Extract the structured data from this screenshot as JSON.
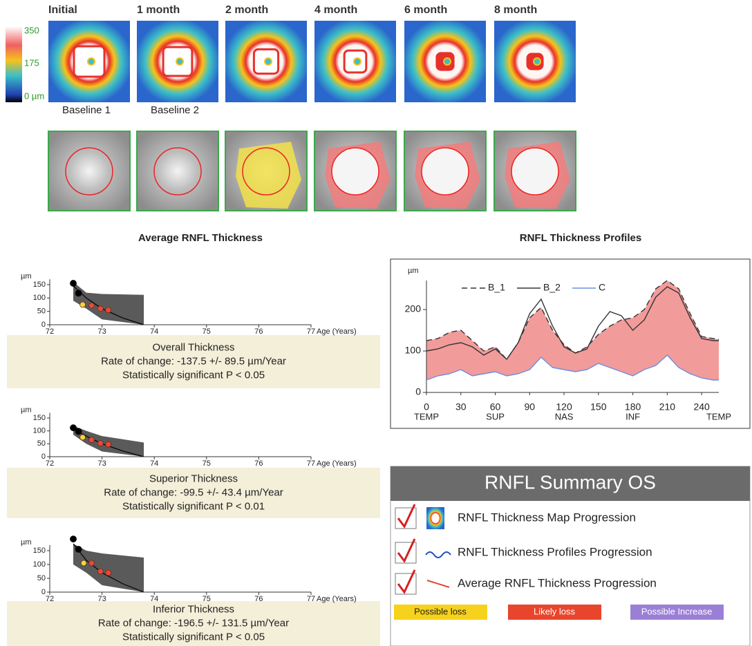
{
  "color_scale": {
    "labels": [
      "350",
      "175",
      "0 µm"
    ]
  },
  "maps": {
    "labels": [
      "Initial",
      "1 month",
      "2 month",
      "4 month",
      "6 month",
      "8 month"
    ]
  },
  "fundus": {
    "labels": [
      "Baseline 1",
      "Baseline 2"
    ]
  },
  "sections": [
    "Average RNFL Thickness",
    "RNFL Thickness Profiles"
  ],
  "chart_data": [
    {
      "type": "scatter",
      "title": "Overall Thickness",
      "subtitle": "Rate of change: -137.5 +/- 89.5 µm/Year",
      "annotation": "Statistically significant P < 0.05",
      "ylabel": "µm",
      "xlabel": "Age (Years)",
      "xlim": [
        72,
        77
      ],
      "ylim": [
        0,
        170
      ],
      "xticks": [
        72,
        73,
        74,
        75,
        76,
        77
      ],
      "yticks": [
        0,
        50,
        100,
        150
      ],
      "band": {
        "color": "#5a5a5a",
        "x": [
          72.45,
          72.7,
          73.0,
          73.8
        ],
        "upper": [
          160,
          120,
          115,
          112
        ],
        "lower": [
          90,
          60,
          20,
          0
        ]
      },
      "trend": {
        "color": "#000000",
        "x": [
          72.45,
          72.7,
          73.0,
          73.4,
          73.8
        ],
        "values": [
          145,
          100,
          60,
          25,
          0
        ]
      },
      "series": [
        {
          "color": "#000000",
          "x": [
            72.45,
            72.55
          ],
          "values": [
            155,
            118
          ]
        },
        {
          "color": "#f5d73a",
          "x": [
            72.63
          ],
          "values": [
            75
          ]
        },
        {
          "color": "#e8493a",
          "x": [
            72.8,
            72.97,
            73.12
          ],
          "values": [
            72,
            60,
            55
          ]
        }
      ]
    },
    {
      "type": "scatter",
      "title": "Superior Thickness",
      "subtitle": "Rate of change: -99.5 +/- 43.4 µm/Year",
      "annotation": "Statistically significant P < 0.01",
      "ylabel": "µm",
      "xlabel": "Age (Years)",
      "xlim": [
        72,
        77
      ],
      "ylim": [
        0,
        170
      ],
      "xticks": [
        72,
        73,
        74,
        75,
        76,
        77
      ],
      "yticks": [
        0,
        50,
        100,
        150
      ],
      "band": {
        "color": "#5a5a5a",
        "x": [
          72.45,
          72.7,
          73.0,
          73.8
        ],
        "upper": [
          120,
          100,
          80,
          55
        ],
        "lower": [
          85,
          50,
          20,
          0
        ]
      },
      "trend": {
        "color": "#000000",
        "x": [
          72.45,
          72.7,
          73.0,
          73.4,
          73.8
        ],
        "values": [
          108,
          80,
          50,
          22,
          0
        ]
      },
      "series": [
        {
          "color": "#000000",
          "x": [
            72.45,
            72.55
          ],
          "values": [
            112,
            98
          ]
        },
        {
          "color": "#f5d73a",
          "x": [
            72.63
          ],
          "values": [
            75
          ]
        },
        {
          "color": "#e8493a",
          "x": [
            72.8,
            72.97,
            73.12
          ],
          "values": [
            65,
            52,
            48
          ]
        }
      ]
    },
    {
      "type": "scatter",
      "title": "Inferior Thickness",
      "subtitle": "Rate of change: -196.5 +/- 131.5 µm/Year",
      "annotation": "Statistically significant P < 0.05",
      "ylabel": "µm",
      "xlabel": "Age (Years)",
      "xlim": [
        72,
        77
      ],
      "ylim": [
        0,
        170
      ],
      "xticks": [
        72,
        73,
        74,
        75,
        76,
        77
      ],
      "yticks": [
        0,
        50,
        100,
        150
      ],
      "band": {
        "color": "#5a5a5a",
        "x": [
          72.45,
          72.7,
          73.0,
          73.8
        ],
        "upper": [
          175,
          150,
          140,
          125
        ],
        "lower": [
          100,
          70,
          25,
          0
        ]
      },
      "trend": {
        "color": "#000000",
        "x": [
          72.45,
          72.7,
          73.0,
          73.4,
          73.8
        ],
        "values": [
          175,
          115,
          70,
          30,
          0
        ]
      },
      "series": [
        {
          "color": "#000000",
          "x": [
            72.45,
            72.55
          ],
          "values": [
            192,
            155
          ]
        },
        {
          "color": "#f5d73a",
          "x": [
            72.65
          ],
          "values": [
            105
          ]
        },
        {
          "color": "#e8493a",
          "x": [
            72.8,
            72.97,
            73.12
          ],
          "values": [
            105,
            75,
            70
          ]
        }
      ]
    },
    {
      "type": "line",
      "ylabel": "µm",
      "xlim": [
        0,
        260
      ],
      "ylim": [
        0,
        270
      ],
      "xticks": [
        0,
        30,
        60,
        90,
        120,
        150,
        180,
        210,
        240
      ],
      "yticks": [
        0,
        100,
        200
      ],
      "xsublabels": [
        {
          "value": 0,
          "label": "TEMP"
        },
        {
          "value": 60,
          "label": "SUP"
        },
        {
          "value": 120,
          "label": "NAS"
        },
        {
          "value": 180,
          "label": "INF"
        },
        {
          "value": 255,
          "label": "TEMP"
        }
      ],
      "fill_color": "#f08a8a",
      "x": [
        0,
        10,
        20,
        30,
        40,
        50,
        60,
        70,
        80,
        90,
        100,
        110,
        120,
        130,
        140,
        150,
        160,
        170,
        180,
        190,
        200,
        210,
        220,
        230,
        240,
        250,
        255
      ],
      "series": [
        {
          "name": "B_1",
          "color": "#333333",
          "style": "dashed",
          "values": [
            125,
            130,
            145,
            150,
            125,
            100,
            110,
            80,
            120,
            180,
            205,
            150,
            115,
            95,
            110,
            140,
            160,
            175,
            180,
            200,
            250,
            270,
            250,
            190,
            135,
            130,
            128
          ]
        },
        {
          "name": "B_2",
          "color": "#333333",
          "style": "solid",
          "values": [
            100,
            105,
            115,
            120,
            110,
            90,
            105,
            80,
            120,
            190,
            225,
            160,
            110,
            95,
            105,
            160,
            195,
            185,
            150,
            175,
            230,
            255,
            240,
            180,
            130,
            125,
            125
          ]
        },
        {
          "name": "C",
          "color": "#6a8fe0",
          "style": "solid",
          "values": [
            30,
            40,
            45,
            55,
            40,
            45,
            50,
            40,
            45,
            55,
            85,
            60,
            55,
            50,
            55,
            70,
            60,
            50,
            40,
            55,
            65,
            90,
            60,
            45,
            35,
            30,
            30
          ]
        }
      ]
    }
  ],
  "summary": {
    "title": "RNFL Summary OS",
    "items": [
      "RNFL Thickness Map Progression",
      "RNFL Thickness Profiles Progression",
      "Average RNFL Thickness Progression"
    ],
    "legend": [
      {
        "label": "Possible loss",
        "color": "#f7d21c"
      },
      {
        "label": "Likely loss",
        "color": "#e8452c"
      },
      {
        "label": "Possible Increase",
        "color": "#9b7fd6"
      }
    ]
  }
}
